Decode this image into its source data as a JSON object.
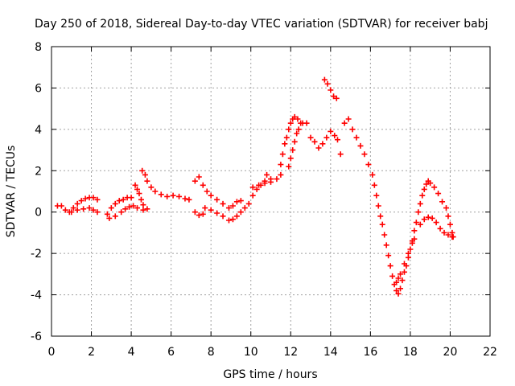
{
  "chart_data": {
    "type": "scatter",
    "title": "Day 250 of 2018, Sidereal Day-to-day VTEC variation (SDTVAR) for receiver babj",
    "xlabel": "GPS time / hours",
    "ylabel": "SDTVAR / TECUs",
    "xlim": [
      0,
      22
    ],
    "ylim": [
      -6,
      8
    ],
    "xticks": [
      "0",
      "2",
      "4",
      "6",
      "8",
      "10",
      "12",
      "14",
      "16",
      "18",
      "20",
      "22"
    ],
    "yticks": [
      "-6",
      "-4",
      "-2",
      "0",
      "2",
      "4",
      "6",
      "8"
    ],
    "grid": true,
    "marker": "+",
    "color": "#ff0000",
    "series": [
      {
        "name": "SDTVAR",
        "points": [
          [
            0.3,
            0.3
          ],
          [
            0.5,
            0.3
          ],
          [
            0.7,
            0.1
          ],
          [
            0.9,
            0.0
          ],
          [
            1.1,
            0.2
          ],
          [
            1.3,
            0.4
          ],
          [
            1.5,
            0.55
          ],
          [
            1.7,
            0.65
          ],
          [
            1.9,
            0.7
          ],
          [
            2.1,
            0.7
          ],
          [
            2.3,
            0.6
          ],
          [
            1.0,
            0.0
          ],
          [
            1.3,
            0.1
          ],
          [
            1.6,
            0.15
          ],
          [
            1.9,
            0.2
          ],
          [
            2.1,
            0.1
          ],
          [
            2.3,
            0.0
          ],
          [
            2.8,
            -0.1
          ],
          [
            3.0,
            0.2
          ],
          [
            3.2,
            0.4
          ],
          [
            3.4,
            0.55
          ],
          [
            3.6,
            0.6
          ],
          [
            3.8,
            0.7
          ],
          [
            4.0,
            0.7
          ],
          [
            2.9,
            -0.3
          ],
          [
            3.2,
            -0.2
          ],
          [
            3.5,
            0.0
          ],
          [
            3.7,
            0.15
          ],
          [
            3.9,
            0.25
          ],
          [
            4.1,
            0.3
          ],
          [
            4.2,
            1.3
          ],
          [
            4.3,
            1.1
          ],
          [
            4.4,
            0.9
          ],
          [
            4.5,
            0.6
          ],
          [
            4.6,
            0.35
          ],
          [
            4.3,
            0.2
          ],
          [
            4.6,
            0.1
          ],
          [
            4.8,
            0.15
          ],
          [
            4.55,
            2.0
          ],
          [
            4.7,
            1.8
          ],
          [
            4.8,
            1.5
          ],
          [
            5.0,
            1.2
          ],
          [
            5.2,
            1.0
          ],
          [
            5.5,
            0.85
          ],
          [
            5.8,
            0.75
          ],
          [
            6.1,
            0.8
          ],
          [
            6.4,
            0.75
          ],
          [
            6.7,
            0.65
          ],
          [
            6.9,
            0.6
          ],
          [
            7.2,
            0.0
          ],
          [
            7.4,
            -0.15
          ],
          [
            7.6,
            -0.1
          ],
          [
            7.2,
            1.5
          ],
          [
            7.4,
            1.7
          ],
          [
            7.6,
            1.3
          ],
          [
            7.8,
            1.0
          ],
          [
            8.0,
            0.8
          ],
          [
            8.3,
            0.6
          ],
          [
            8.6,
            0.4
          ],
          [
            8.9,
            0.2
          ],
          [
            9.1,
            0.3
          ],
          [
            9.3,
            0.5
          ],
          [
            9.5,
            0.55
          ],
          [
            7.7,
            0.2
          ],
          [
            8.0,
            0.1
          ],
          [
            8.3,
            -0.05
          ],
          [
            8.6,
            -0.2
          ],
          [
            8.9,
            -0.4
          ],
          [
            9.1,
            -0.35
          ],
          [
            9.3,
            -0.2
          ],
          [
            9.5,
            0.0
          ],
          [
            9.7,
            0.2
          ],
          [
            9.9,
            0.4
          ],
          [
            10.1,
            0.8
          ],
          [
            10.3,
            1.1
          ],
          [
            10.5,
            1.3
          ],
          [
            10.7,
            1.5
          ],
          [
            10.8,
            1.8
          ],
          [
            11.0,
            1.6
          ],
          [
            10.1,
            1.2
          ],
          [
            10.4,
            1.3
          ],
          [
            10.7,
            1.4
          ],
          [
            11.0,
            1.45
          ],
          [
            11.3,
            1.6
          ],
          [
            11.5,
            1.8
          ],
          [
            11.5,
            2.3
          ],
          [
            11.6,
            2.8
          ],
          [
            11.7,
            3.3
          ],
          [
            11.8,
            3.6
          ],
          [
            11.9,
            4.0
          ],
          [
            12.0,
            4.3
          ],
          [
            12.1,
            4.5
          ],
          [
            12.2,
            4.6
          ],
          [
            12.35,
            4.5
          ],
          [
            12.5,
            4.3
          ],
          [
            11.9,
            2.2
          ],
          [
            12.0,
            2.6
          ],
          [
            12.1,
            3.0
          ],
          [
            12.2,
            3.4
          ],
          [
            12.3,
            3.8
          ],
          [
            12.4,
            4.0
          ],
          [
            12.6,
            4.3
          ],
          [
            12.8,
            4.3
          ],
          [
            13.0,
            3.6
          ],
          [
            13.2,
            3.4
          ],
          [
            13.4,
            3.1
          ],
          [
            13.6,
            3.3
          ],
          [
            13.8,
            3.6
          ],
          [
            14.0,
            3.9
          ],
          [
            14.2,
            3.7
          ],
          [
            14.35,
            3.5
          ],
          [
            14.5,
            2.8
          ],
          [
            13.7,
            6.4
          ],
          [
            13.85,
            6.2
          ],
          [
            14.0,
            5.9
          ],
          [
            14.15,
            5.6
          ],
          [
            14.3,
            5.5
          ],
          [
            14.7,
            4.3
          ],
          [
            14.9,
            4.5
          ],
          [
            15.1,
            4.0
          ],
          [
            15.3,
            3.6
          ],
          [
            15.5,
            3.2
          ],
          [
            15.7,
            2.8
          ],
          [
            15.9,
            2.3
          ],
          [
            16.1,
            1.8
          ],
          [
            16.2,
            1.3
          ],
          [
            16.3,
            0.8
          ],
          [
            16.4,
            0.3
          ],
          [
            16.5,
            -0.2
          ],
          [
            16.6,
            -0.6
          ],
          [
            16.7,
            -1.1
          ],
          [
            16.8,
            -1.6
          ],
          [
            16.9,
            -2.1
          ],
          [
            17.0,
            -2.6
          ],
          [
            17.1,
            -3.1
          ],
          [
            17.2,
            -3.5
          ],
          [
            17.3,
            -3.8
          ],
          [
            17.4,
            -3.95
          ],
          [
            17.5,
            -3.7
          ],
          [
            17.6,
            -3.3
          ],
          [
            17.7,
            -2.9
          ],
          [
            17.8,
            -2.6
          ],
          [
            17.9,
            -2.2
          ],
          [
            18.0,
            -1.8
          ],
          [
            18.1,
            -1.5
          ],
          [
            18.2,
            -1.3
          ],
          [
            17.3,
            -3.4
          ],
          [
            17.4,
            -3.2
          ],
          [
            17.5,
            -3.0
          ],
          [
            17.7,
            -2.5
          ],
          [
            17.9,
            -2.0
          ],
          [
            18.1,
            -1.4
          ],
          [
            18.2,
            -0.9
          ],
          [
            18.3,
            -0.5
          ],
          [
            18.4,
            0.0
          ],
          [
            18.5,
            0.4
          ],
          [
            18.6,
            0.8
          ],
          [
            18.7,
            1.1
          ],
          [
            18.8,
            1.35
          ],
          [
            18.9,
            1.5
          ],
          [
            19.0,
            1.4
          ],
          [
            19.2,
            1.2
          ],
          [
            19.4,
            0.9
          ],
          [
            19.6,
            0.5
          ],
          [
            19.8,
            0.2
          ],
          [
            19.9,
            -0.2
          ],
          [
            20.0,
            -0.6
          ],
          [
            20.1,
            -1.0
          ],
          [
            20.15,
            -1.2
          ],
          [
            18.5,
            -0.6
          ],
          [
            18.7,
            -0.35
          ],
          [
            18.9,
            -0.25
          ],
          [
            19.1,
            -0.3
          ],
          [
            19.3,
            -0.5
          ],
          [
            19.5,
            -0.8
          ],
          [
            19.7,
            -1.0
          ],
          [
            19.9,
            -1.1
          ],
          [
            20.1,
            -1.2
          ]
        ]
      }
    ]
  }
}
